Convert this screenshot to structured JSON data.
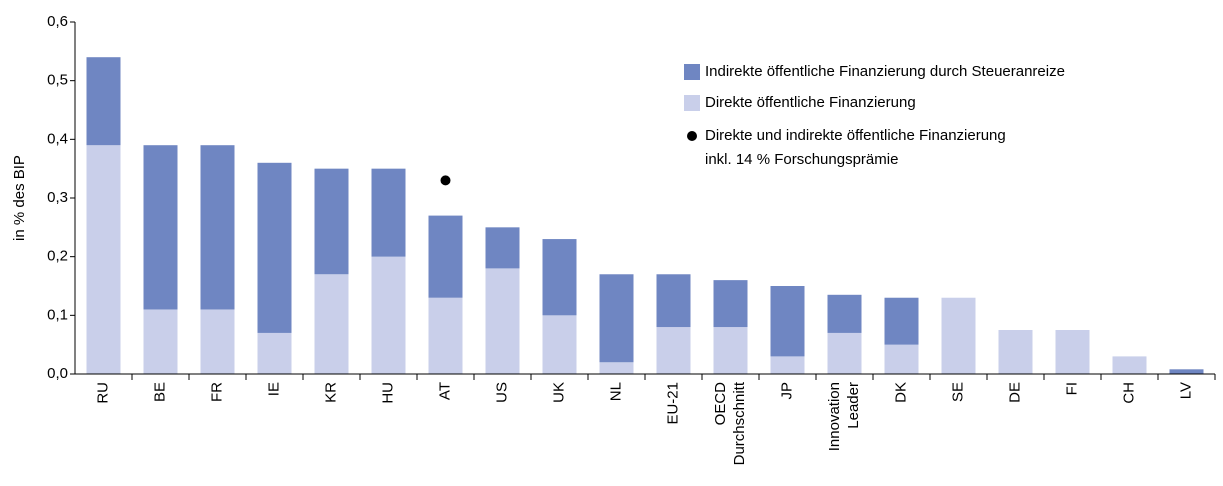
{
  "chart_data": {
    "type": "bar",
    "stacked": true,
    "y_label": "in % des BIP",
    "categories": [
      "RU",
      "BE",
      "FR",
      "IE",
      "KR",
      "HU",
      "AT",
      "US",
      "UK",
      "NL",
      "EU-21",
      "OECD\nDurchschnitt",
      "JP",
      "Innovation\nLeader",
      "DK",
      "SE",
      "DE",
      "FI",
      "CH",
      "LV"
    ],
    "series": [
      {
        "name": "Indirekte öffentliche Finanzierung durch Steueranreize",
        "color": "#6f86c2",
        "type": "bar",
        "values": [
          0.15,
          0.28,
          0.28,
          0.29,
          0.18,
          0.15,
          0.14,
          0.07,
          0.13,
          0.15,
          0.09,
          0.08,
          0.12,
          0.065,
          0.08,
          0,
          0,
          0,
          0,
          0.008
        ]
      },
      {
        "name": "Direkte öffentliche Finanzierung",
        "color": "#c9cfea",
        "type": "bar",
        "values": [
          0.39,
          0.11,
          0.11,
          0.07,
          0.17,
          0.2,
          0.13,
          0.18,
          0.1,
          0.02,
          0.08,
          0.08,
          0.03,
          0.07,
          0.05,
          0.13,
          0.075,
          0.075,
          0.03,
          0
        ]
      },
      {
        "name": "Direkte und indirekte öffentliche Finanzierung\ninkl. 14 % Forschungsprämie",
        "color": "#000000",
        "type": "scatter",
        "values": [
          null,
          null,
          null,
          null,
          null,
          null,
          0.33,
          null,
          null,
          null,
          null,
          null,
          null,
          null,
          null,
          null,
          null,
          null,
          null,
          null
        ]
      }
    ],
    "ylim": [
      0,
      0.6
    ],
    "yticks": [
      {
        "value": 0,
        "label": "0,0"
      },
      {
        "value": 0.1,
        "label": "0,1"
      },
      {
        "value": 0.2,
        "label": "0,2"
      },
      {
        "value": 0.3,
        "label": "0,3"
      },
      {
        "value": 0.4,
        "label": "0,4"
      },
      {
        "value": 0.5,
        "label": "0,5"
      },
      {
        "value": 0.6,
        "label": "0,6"
      }
    ],
    "legend": "upper right"
  }
}
